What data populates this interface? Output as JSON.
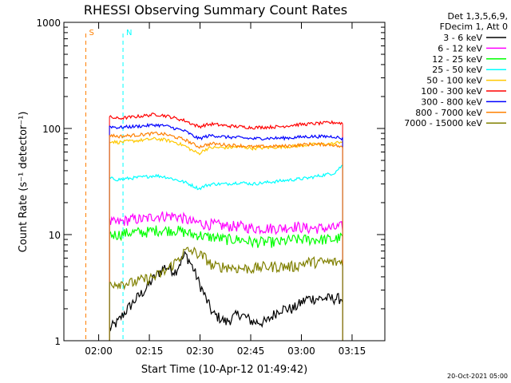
{
  "chart_data": {
    "type": "line",
    "title": "RHESSI Observing Summary Count Rates",
    "xlabel": "Start Time (10-Apr-12 01:49:42)",
    "ylabel": "Count Rate (s⁻¹ detector⁻¹)",
    "yscale": "log",
    "ylim": [
      1,
      1000
    ],
    "xlim_minutes_after_start": [
      0,
      95
    ],
    "x_ticks": [
      {
        "label": "02:00",
        "minute": 10.3
      },
      {
        "label": "02:15",
        "minute": 25.3
      },
      {
        "label": "02:30",
        "minute": 40.3
      },
      {
        "label": "02:45",
        "minute": 55.3
      },
      {
        "label": "03:00",
        "minute": 70.3
      },
      {
        "label": "03:15",
        "minute": 85.3
      }
    ],
    "y_ticks": [
      {
        "label": "1",
        "value": 1
      },
      {
        "label": "10",
        "value": 10
      },
      {
        "label": "100",
        "value": 100
      },
      {
        "label": "1000",
        "value": 1000
      }
    ],
    "legend_header": [
      "Det 1,3,5,6,9,",
      "FDecim 1, Att 0"
    ],
    "legend_position": "outside-right",
    "grid": false,
    "time_minutes": [
      13.5,
      16,
      20,
      24,
      27,
      30,
      33,
      36,
      38,
      40,
      42,
      44,
      48,
      52,
      56,
      60,
      64,
      68,
      72,
      76,
      80,
      82.5
    ],
    "series": [
      {
        "name": "3 - 6 keV",
        "color": "#000000",
        "values": [
          1.3,
          1.5,
          2.2,
          3.0,
          4.0,
          5.0,
          4.5,
          6.5,
          5.0,
          3.5,
          2.5,
          1.8,
          1.5,
          1.8,
          1.5,
          1.5,
          2.0,
          2.0,
          2.5,
          2.5,
          2.5,
          2.5
        ]
      },
      {
        "name": "6 - 12 keV",
        "color": "#ff00ff",
        "values": [
          13,
          13,
          14,
          14,
          15,
          15,
          15,
          14,
          13,
          13,
          12.5,
          12.5,
          12,
          12,
          11.5,
          11.5,
          11.5,
          12,
          11.5,
          11.5,
          11.5,
          12
        ]
      },
      {
        "name": "12 - 25 keV",
        "color": "#00ff00",
        "values": [
          10,
          10,
          10.5,
          10.5,
          11,
          11,
          11,
          10.5,
          10,
          10,
          9.5,
          9.5,
          9,
          9,
          8.5,
          8.5,
          8.5,
          9,
          9,
          9,
          9,
          9.5
        ]
      },
      {
        "name": "25 - 50 keV",
        "color": "#00ffff",
        "values": [
          34,
          33,
          34,
          35,
          36,
          35,
          33,
          31,
          29,
          27,
          29,
          30,
          30,
          31,
          30,
          31,
          32,
          33,
          34,
          36,
          38,
          45
        ]
      },
      {
        "name": "50 - 100 keV",
        "color": "#ffc800",
        "values": [
          76,
          74,
          76,
          78,
          80,
          78,
          74,
          68,
          62,
          58,
          64,
          66,
          66,
          67,
          65,
          66,
          67,
          68,
          70,
          71,
          72,
          76
        ]
      },
      {
        "name": "100 - 300 keV",
        "color": "#ff0000",
        "values": [
          128,
          124,
          128,
          132,
          136,
          132,
          125,
          118,
          110,
          104,
          108,
          110,
          106,
          104,
          102,
          103,
          104,
          108,
          110,
          112,
          114,
          112
        ]
      },
      {
        "name": "300 - 800 keV",
        "color": "#0000ff",
        "values": [
          105,
          102,
          104,
          106,
          108,
          106,
          100,
          94,
          86,
          80,
          84,
          86,
          83,
          82,
          80,
          81,
          81,
          82,
          84,
          84,
          84,
          80
        ]
      },
      {
        "name": "800 - 7000 keV",
        "color": "#ff8000",
        "values": [
          87,
          84,
          86,
          88,
          90,
          88,
          83,
          78,
          72,
          67,
          70,
          72,
          70,
          69,
          67,
          68,
          68,
          69,
          71,
          71,
          70,
          66
        ]
      },
      {
        "name": "7000 - 15000 keV",
        "color": "#808000",
        "values": [
          3.5,
          3.5,
          3.5,
          3.8,
          4.0,
          4.5,
          5.5,
          7.0,
          7.0,
          6.5,
          6.0,
          5.0,
          5.0,
          4.8,
          4.8,
          5.0,
          5.0,
          5.0,
          5.5,
          5.5,
          5.5,
          5.5
        ]
      }
    ],
    "markers": [
      {
        "label": "S",
        "color": "#ff8000",
        "minute": 6.5,
        "style": "dashed"
      },
      {
        "label": "N",
        "color": "#00ffff",
        "minute": 17.5,
        "style": "dashed"
      }
    ],
    "footer_date": "20-Oct-2021 05:00"
  }
}
